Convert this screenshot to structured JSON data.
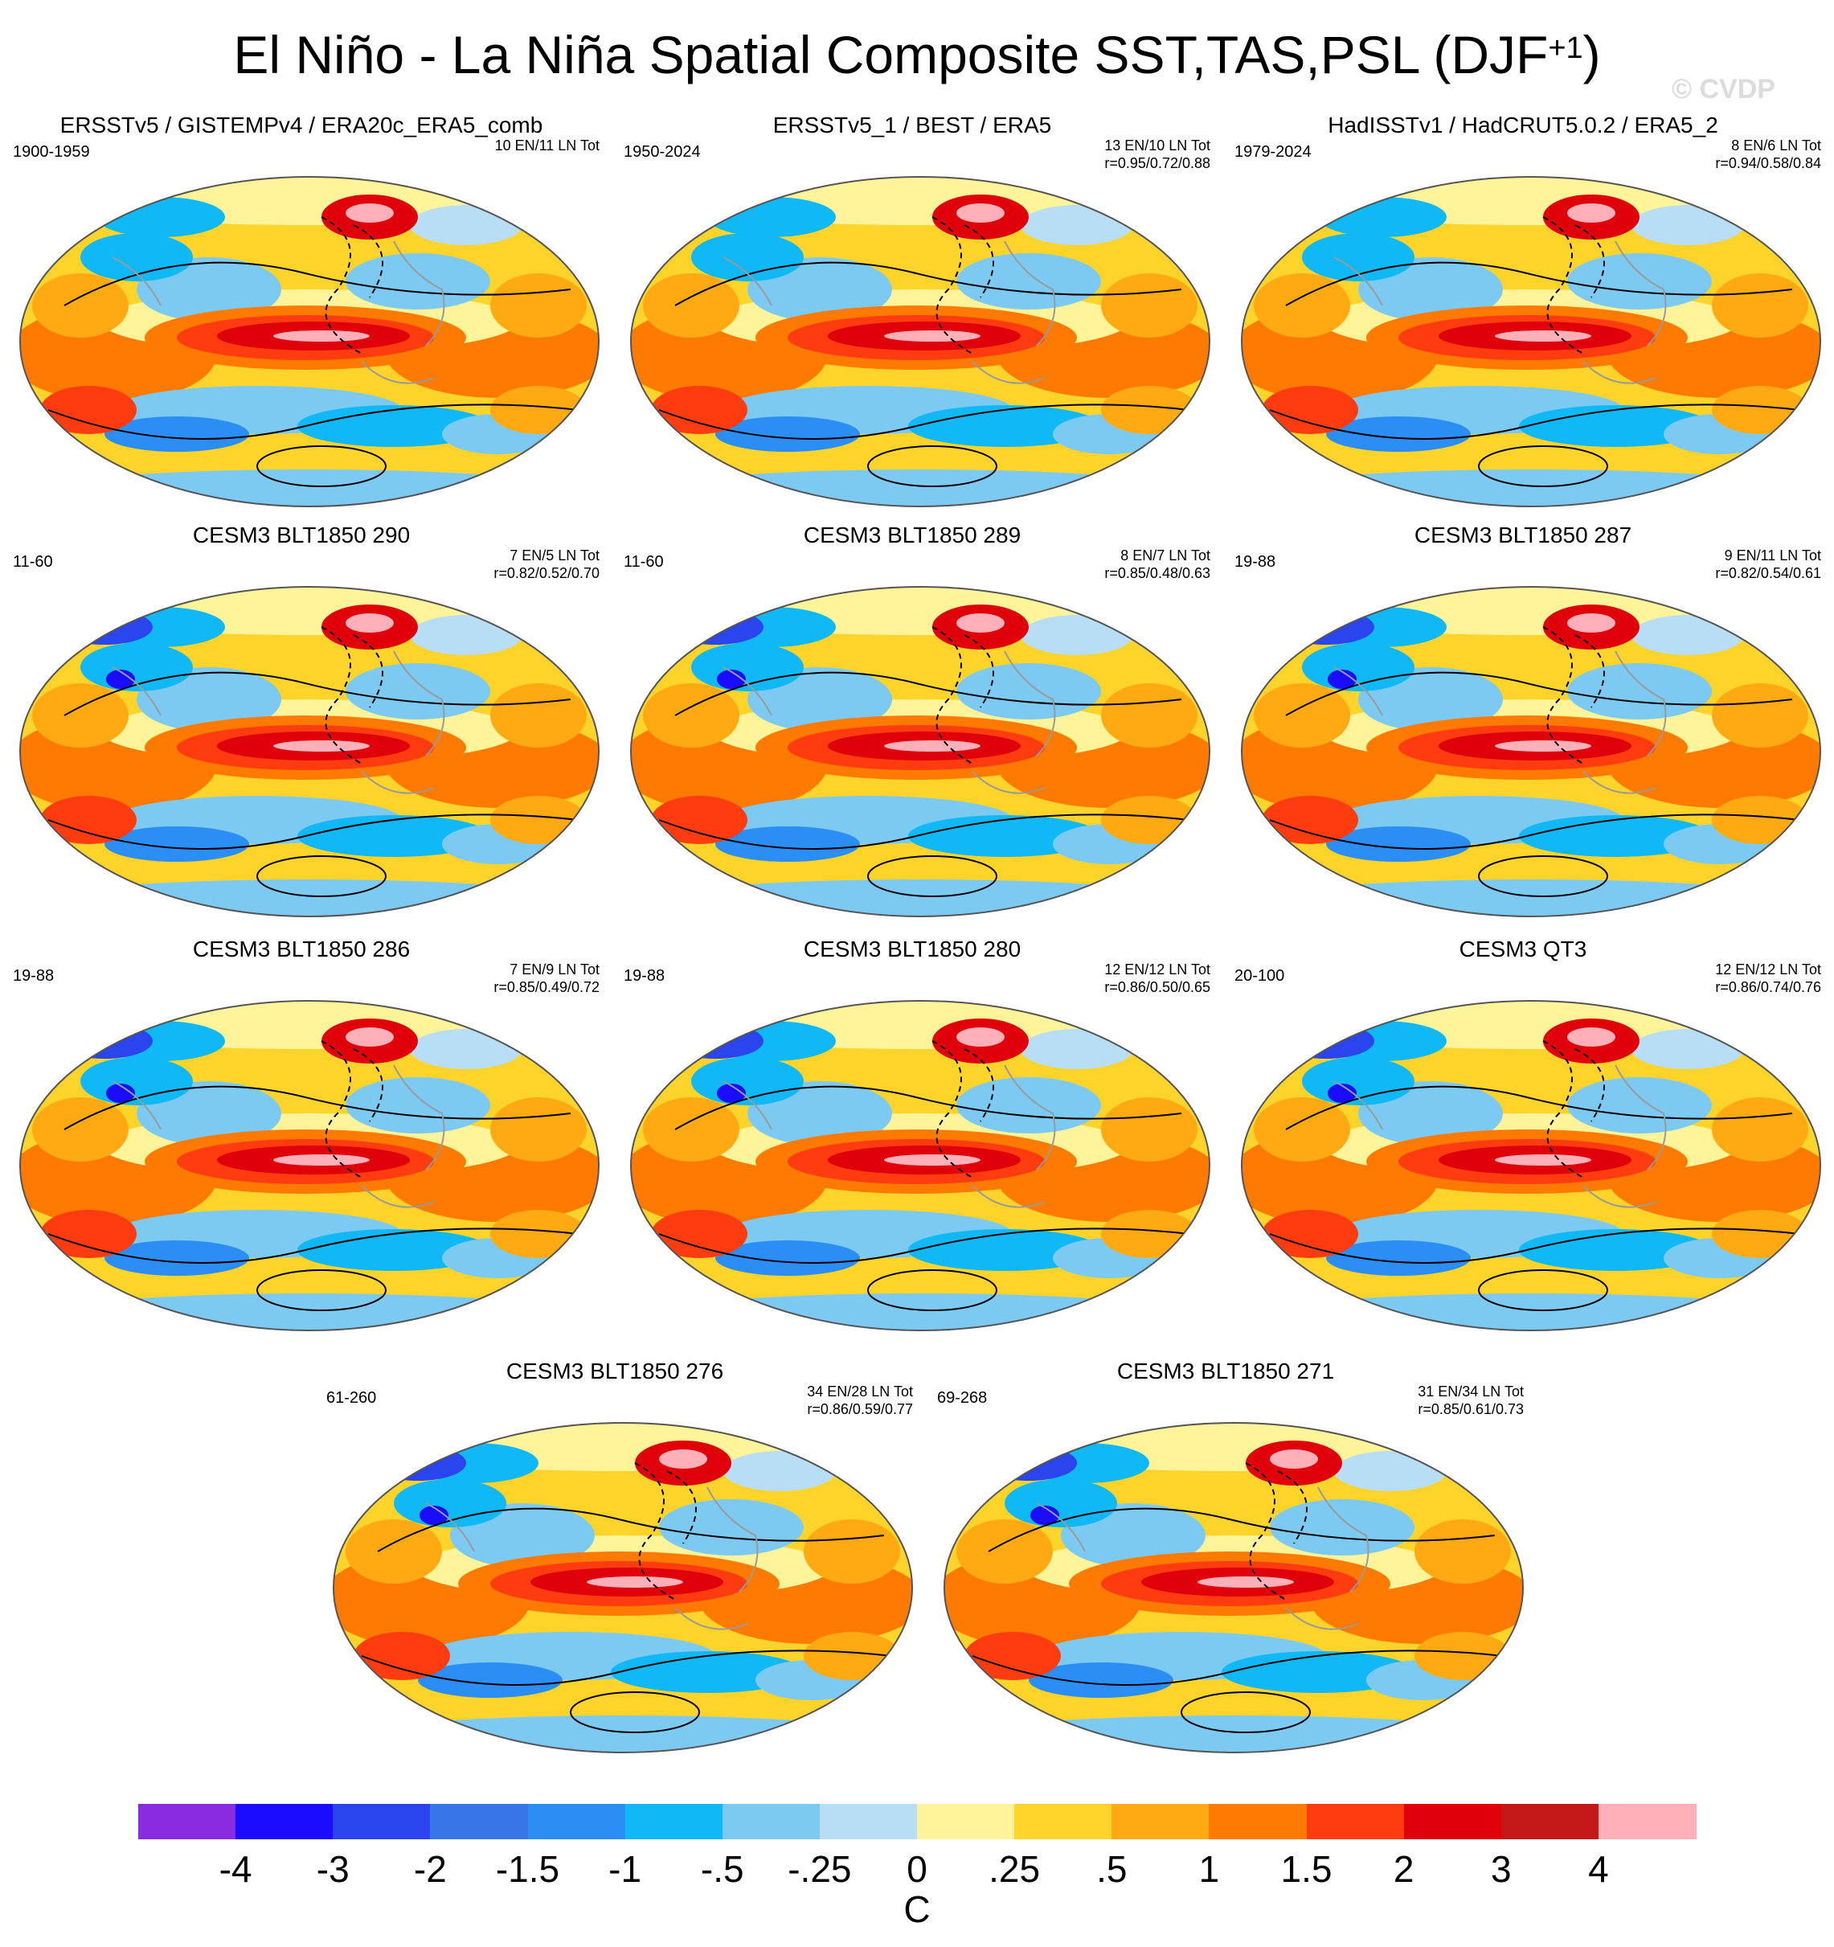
{
  "page": {
    "title": "El Niño - La Niña Spatial Composite SST,TAS,PSL (DJF",
    "title_superscript": "+1",
    "title_close": ")",
    "copyright": "© CVDP"
  },
  "panels": [
    {
      "title": "ERSSTv5 / GISTEMPv4 / ERA20c_ERA5_comb",
      "years": "1900-1959",
      "count": "10 EN/11 LN Tot",
      "r": ""
    },
    {
      "title": "ERSSTv5_1 / BEST / ERA5",
      "years": "1950-2024",
      "count": "13 EN/10 LN Tot",
      "r": "r=0.95/0.72/0.88"
    },
    {
      "title": "HadISSTv1 / HadCRUT5.0.2 / ERA5_2",
      "years": "1979-2024",
      "count": "8 EN/6 LN Tot",
      "r": "r=0.94/0.58/0.84"
    },
    {
      "title": "CESM3 BLT1850 290",
      "years": "11-60",
      "count": "7 EN/5 LN Tot",
      "r": "r=0.82/0.52/0.70"
    },
    {
      "title": "CESM3 BLT1850 289",
      "years": "11-60",
      "count": "8 EN/7 LN Tot",
      "r": "r=0.85/0.48/0.63"
    },
    {
      "title": "CESM3 BLT1850 287",
      "years": "19-88",
      "count": "9 EN/11 LN Tot",
      "r": "r=0.82/0.54/0.61"
    },
    {
      "title": "CESM3 BLT1850 286",
      "years": "19-88",
      "count": "7 EN/9 LN Tot",
      "r": "r=0.85/0.49/0.72"
    },
    {
      "title": "CESM3 BLT1850 280",
      "years": "19-88",
      "count": "12 EN/12 LN Tot",
      "r": "r=0.86/0.50/0.65"
    },
    {
      "title": "CESM3 QT3",
      "years": "20-100",
      "count": "12 EN/12 LN Tot",
      "r": "r=0.86/0.74/0.76"
    },
    {
      "title": "CESM3 BLT1850 276",
      "years": "61-260",
      "count": "34 EN/28 LN Tot",
      "r": "r=0.86/0.59/0.77"
    },
    {
      "title": "CESM3 BLT1850 271",
      "years": "69-268",
      "count": "31 EN/34 LN Tot",
      "r": "r=0.85/0.61/0.73"
    }
  ],
  "colorbar": {
    "unit": "C",
    "tick_labels": [
      "-4",
      "-3",
      "-2",
      "-1.5",
      "-1",
      "-.5",
      "-.25",
      "0",
      ".25",
      ".5",
      "1",
      "1.5",
      "2",
      "3",
      "4"
    ],
    "colors": [
      "#8a2be2",
      "#1a0dff",
      "#2a44ee",
      "#3775e8",
      "#2a8ef5",
      "#10b8f5",
      "#7ccaf2",
      "#b8def5",
      "#fff49a",
      "#ffd42a",
      "#ffaa12",
      "#ff7a00",
      "#ff3c10",
      "#e0000a",
      "#c41818",
      "#ffb0b8"
    ]
  },
  "chart_data": {
    "type": "heatmap",
    "description_values": {
      "variables": [
        "SST",
        "TAS",
        "PSL"
      ],
      "season": "DJF+1",
      "units": "C",
      "levels": [
        -4,
        -3,
        -2,
        -1.5,
        -1,
        -0.5,
        -0.25,
        0,
        0.25,
        0.5,
        1,
        1.5,
        2,
        3,
        4
      ],
      "projection": "Robinson / elliptical global map",
      "panel_count": 11
    }
  }
}
